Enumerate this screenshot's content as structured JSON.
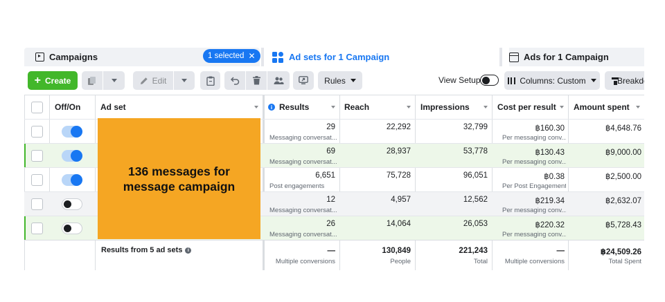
{
  "tabs": {
    "campaigns": {
      "label": "Campaigns",
      "selected_pill": "1 selected"
    },
    "adsets": {
      "label": "Ad sets for 1 Campaign"
    },
    "ads": {
      "label": "Ads for 1 Campaign"
    }
  },
  "toolbar": {
    "create_label": "Create",
    "edit_label": "Edit",
    "rules_label": "Rules",
    "view_setup_label": "View Setup",
    "columns_label": "Columns: Custom",
    "breakdown_label": "Breakdown"
  },
  "colors": {
    "accent": "#1877f2",
    "create_green": "#42b72a",
    "highlight": "#f5a623"
  },
  "table": {
    "headers": {
      "off_on": "Off/On",
      "ad_set": "Ad set",
      "results": "Results",
      "reach": "Reach",
      "impressions": "Impressions",
      "cost_per_result": "Cost per result",
      "amount_spent": "Amount spent"
    },
    "rows": [
      {
        "on": true,
        "results": "29",
        "results_type": "Messaging conversat...",
        "reach": "22,292",
        "impressions": "32,799",
        "cost": "฿160.30",
        "cost_type": "Per messaging conv...",
        "spent": "฿4,648.76"
      },
      {
        "on": true,
        "results": "69",
        "results_type": "Messaging conversat...",
        "reach": "28,937",
        "impressions": "53,778",
        "cost": "฿130.43",
        "cost_type": "Per messaging conv...",
        "spent": "฿9,000.00"
      },
      {
        "on": true,
        "results": "6,651",
        "results_type": "Post engagements",
        "reach": "75,728",
        "impressions": "96,051",
        "cost": "฿0.38",
        "cost_type": "Per Post Engagement",
        "spent": "฿2,500.00"
      },
      {
        "on": false,
        "results": "12",
        "results_type": "Messaging conversat...",
        "reach": "4,957",
        "impressions": "12,562",
        "cost": "฿219.34",
        "cost_type": "Per messaging conv...",
        "spent": "฿2,632.07"
      },
      {
        "on": false,
        "results": "26",
        "results_type": "Messaging conversat...",
        "reach": "14,064",
        "impressions": "26,053",
        "cost": "฿220.32",
        "cost_type": "Per messaging conv...",
        "spent": "฿5,728.43"
      }
    ],
    "footer": {
      "label": "Results from 5 ad sets",
      "results": "—",
      "results_sub": "Multiple conversions",
      "reach": "130,849",
      "reach_sub": "People",
      "impressions": "221,243",
      "impressions_sub": "Total",
      "cost": "—",
      "cost_sub": "Multiple conversions",
      "spent": "฿24,509.26",
      "spent_sub": "Total Spent"
    }
  },
  "overlay": {
    "text": "136 messages for message campaign"
  }
}
